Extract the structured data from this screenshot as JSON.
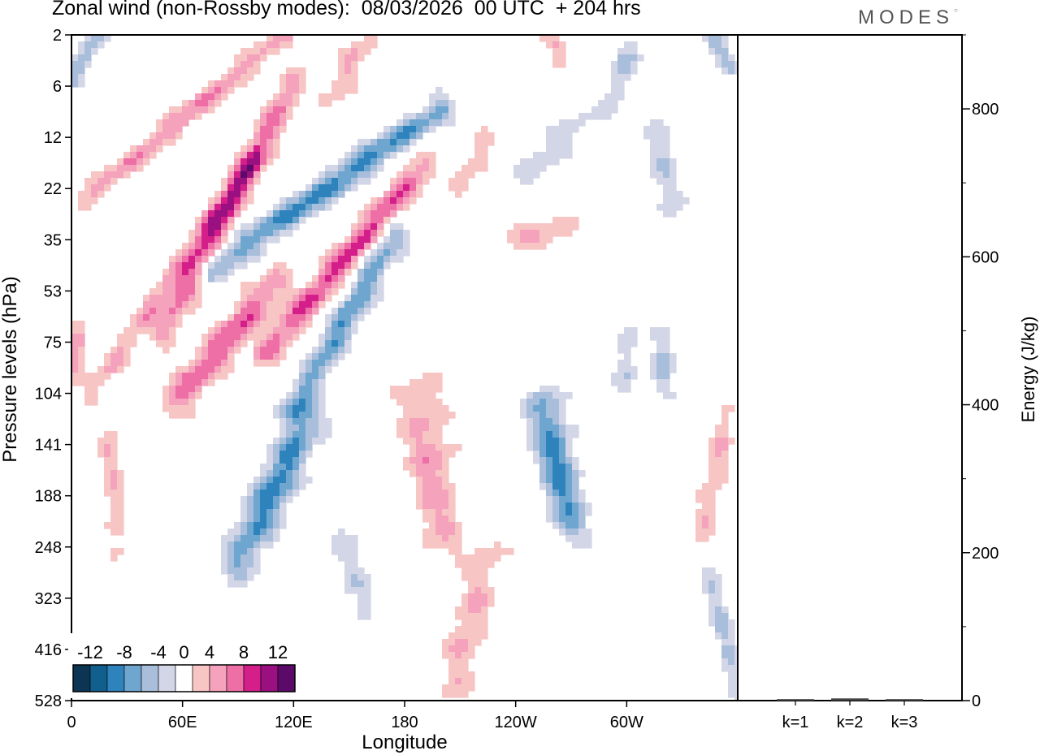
{
  "chart_data": [
    {
      "type": "heatmap",
      "title": "Zonal wind (non-Rossby modes):  08/03/2026  00 UTC  + 204 hrs",
      "xlabel": "Longitude",
      "ylabel": "Pressure levels (hPa)",
      "x_ticks": [
        "0",
        "60E",
        "120E",
        "180",
        "120W",
        "60W"
      ],
      "x_tick_lon": [
        0,
        60,
        120,
        180,
        240,
        300
      ],
      "x_range": [
        0,
        360
      ],
      "y_levels": [
        2,
        6,
        12,
        22,
        35,
        53,
        75,
        104,
        141,
        188,
        248,
        323,
        416,
        528
      ],
      "y_level_labels": [
        "2",
        "6",
        "12",
        "22",
        "35",
        "53",
        "75",
        "104",
        "141",
        "188",
        "248",
        "323",
        "416",
        "528"
      ],
      "colorbar": {
        "labels": [
          "-12",
          "-8",
          "-4",
          "0",
          "4",
          "8",
          "12"
        ],
        "label_values": [
          -12,
          -8,
          -4,
          0,
          4,
          8,
          12
        ],
        "bounds": [
          -14,
          -12,
          -10,
          -8,
          -6,
          -4,
          -2,
          2,
          4,
          6,
          8,
          10,
          12,
          14
        ],
        "colors": [
          "#0b3552",
          "#115f8c",
          "#2f83bd",
          "#6fa6cf",
          "#a9bedb",
          "#d3d6e6",
          "#ffffff",
          "#f8c5c5",
          "#f5a2bc",
          "#ee6ea6",
          "#d41e8a",
          "#9b1080",
          "#5b0a6a"
        ]
      },
      "features": [
        {
          "lon0": 5,
          "lev0": 25,
          "lon1": 115,
          "lev1": 1.5,
          "v": 6,
          "w": 4
        },
        {
          "lon0": 50,
          "lev0": 70,
          "lon1": 120,
          "lev1": 5.5,
          "v": 8,
          "w": 5
        },
        {
          "lon0": 10,
          "lev0": 105,
          "lon1": 100,
          "lev1": 15,
          "v": 5,
          "w": 4
        },
        {
          "lon0": 75,
          "lev0": 45,
          "lon1": 200,
          "lev1": 8,
          "v": -9,
          "w": 5
        },
        {
          "lon0": 105,
          "lev0": 80,
          "lon1": 190,
          "lev1": 17,
          "v": 9,
          "w": 5
        },
        {
          "lon0": 55,
          "lev0": 110,
          "lon1": 110,
          "lev1": 50,
          "v": 8,
          "w": 6
        },
        {
          "lon0": 120,
          "lev0": 115,
          "lon1": 175,
          "lev1": 33,
          "v": -8,
          "w": 5
        },
        {
          "lon0": 90,
          "lev0": 270,
          "lon1": 128,
          "lev1": 120,
          "v": -9,
          "w": 7
        },
        {
          "lon0": 200,
          "lev0": 240,
          "lon1": 188,
          "lev1": 105,
          "v": 5,
          "w": 9
        },
        {
          "lon0": 205,
          "lev0": 520,
          "lon1": 225,
          "lev1": 250,
          "v": 4,
          "w": 7
        },
        {
          "lon0": 270,
          "lev0": 220,
          "lon1": 255,
          "lev1": 110,
          "v": -9,
          "w": 7
        },
        {
          "lon0": 360,
          "lev0": 520,
          "lon1": 345,
          "lev1": 280,
          "v": -4,
          "w": 4
        },
        {
          "lon0": 340,
          "lev0": 235,
          "lon1": 355,
          "lev1": 115,
          "v": 4,
          "w": 4
        },
        {
          "lon0": 240,
          "lev0": 35,
          "lon1": 265,
          "lev1": 33,
          "v": 4,
          "w": 7
        },
        {
          "lon0": 290,
          "lev0": 8,
          "lon1": 305,
          "lev1": 1.5,
          "v": -4,
          "w": 5
        },
        {
          "lon0": 265,
          "lev0": 3,
          "lon1": 260,
          "lev1": 1.5,
          "v": 5,
          "w": 4
        },
        {
          "lon0": 355,
          "lev0": 4,
          "lon1": 345,
          "lev1": 1.5,
          "v": -5,
          "w": 4
        },
        {
          "lon0": 0,
          "lev0": 5,
          "lon1": 15,
          "lev1": 1.5,
          "v": -6,
          "w": 4
        },
        {
          "lon0": 140,
          "lev0": 7,
          "lon1": 160,
          "lev1": 1.5,
          "v": 4,
          "w": 5
        },
        {
          "lon0": 25,
          "lev0": 250,
          "lon1": 20,
          "lev1": 135,
          "v": 4,
          "w": 4
        },
        {
          "lon0": 160,
          "lev0": 330,
          "lon1": 145,
          "lev1": 220,
          "v": -4,
          "w": 5
        },
        {
          "lon0": 210,
          "lev0": 22,
          "lon1": 225,
          "lev1": 12,
          "v": 4,
          "w": 4
        },
        {
          "lon0": 325,
          "lev0": 30,
          "lon1": 315,
          "lev1": 11,
          "v": -4,
          "w": 5
        },
        {
          "lon0": 320,
          "lev0": 100,
          "lon1": 320,
          "lev1": 70,
          "v": -5,
          "w": 4
        },
        {
          "lon0": 245,
          "lev0": 18,
          "lon1": 275,
          "lev1": 10,
          "v": -4,
          "w": 5
        },
        {
          "lon0": 3,
          "lev0": 90,
          "lon1": 3,
          "lev1": 65,
          "v": 5,
          "w": 4
        },
        {
          "lon0": 300,
          "lev0": 100,
          "lon1": 300,
          "lev1": 70,
          "v": -4,
          "w": 4
        }
      ],
      "palette_note": "filled contour of zonal wind anomaly (m/s)"
    },
    {
      "type": "bar",
      "ylabel": "Energy (J/kg)",
      "categories": [
        "k=1",
        "k=2",
        "k=3"
      ],
      "values": [
        2,
        3,
        2
      ],
      "ylim": [
        0,
        900
      ],
      "y_ticks": [
        "0",
        "200",
        "400",
        "600",
        "800"
      ],
      "y_tick_values": [
        0,
        200,
        400,
        600,
        800
      ],
      "minor_step": 100,
      "bar_color": "#444444"
    }
  ],
  "logo_text": "MODES"
}
